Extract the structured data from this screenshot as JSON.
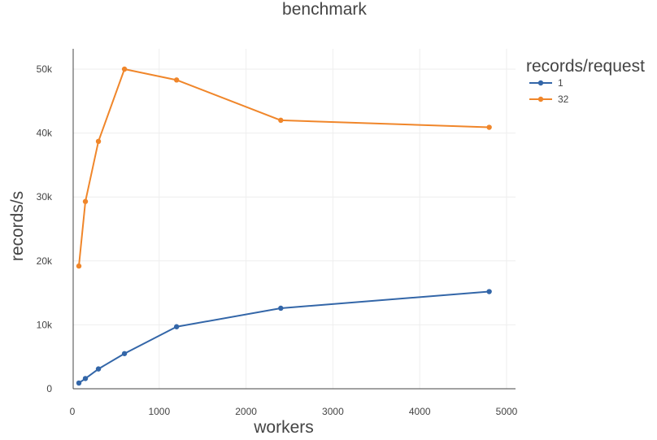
{
  "chart_data": {
    "type": "line",
    "title": "benchmark",
    "xlabel": "workers",
    "ylabel": "records/s",
    "xlim": [
      0,
      5000
    ],
    "ylim": [
      0,
      52000
    ],
    "x_ticks": [
      0,
      1000,
      2000,
      3000,
      4000,
      5000
    ],
    "x_tick_labels": [
      "0",
      "1000",
      "2000",
      "3000",
      "4000",
      "5000"
    ],
    "y_ticks": [
      0,
      10000,
      20000,
      30000,
      40000,
      50000
    ],
    "y_tick_labels": [
      "0",
      "10k",
      "20k",
      "30k",
      "40k",
      "50k"
    ],
    "grid": true,
    "legend": {
      "title": "records/request",
      "placement": "top-right outside"
    },
    "series": [
      {
        "name": "1",
        "color": "#3366a8",
        "x": [
          75,
          150,
          300,
          600,
          1200,
          2400,
          4800
        ],
        "y": [
          900,
          1600,
          3100,
          5500,
          9700,
          12600,
          15200
        ]
      },
      {
        "name": "32",
        "color": "#f0862a",
        "x": [
          75,
          150,
          300,
          600,
          1200,
          2400,
          4800
        ],
        "y": [
          19200,
          29300,
          38700,
          50000,
          48300,
          42000,
          40900
        ]
      }
    ]
  }
}
